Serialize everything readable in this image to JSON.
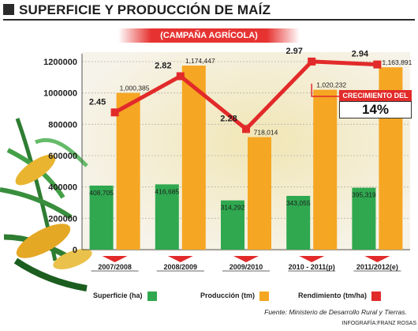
{
  "header": {
    "title": "SUPERFICIE Y PRODUCCIÓN DE MAÍZ",
    "banner": "(CAMPAÑA AGRÍCOLA)"
  },
  "chart_data": {
    "type": "bar",
    "categories": [
      "2007/2008",
      "2008/2009",
      "2009/2010",
      "2010 - 2011(p)",
      "2011/2012(e)"
    ],
    "ylim": [
      0,
      1200000
    ],
    "yticks": [
      "0",
      "200000",
      "400000",
      "600000",
      "800000",
      "1000000",
      "1200000"
    ],
    "grid": true,
    "legend_position": "bottom",
    "series": [
      {
        "name": "Superficie (ha)",
        "kind": "bar",
        "color": "#2fa84f",
        "values": [
          408705,
          416685,
          314292,
          343055,
          395319
        ],
        "labels": [
          "408,705",
          "416,685",
          "314,292",
          "343,055",
          "395,319"
        ]
      },
      {
        "name": "Producción (tm)",
        "kind": "bar",
        "color": "#f5a623",
        "values": [
          1000385,
          1174447,
          718014,
          1020232,
          1163891
        ],
        "labels": [
          "1,000,385",
          "1,174,447",
          "718,014",
          "1,020,232",
          "1,163,891"
        ]
      },
      {
        "name": "Rendimiento (tm/ha)",
        "kind": "line",
        "color": "#e22a2a",
        "values": [
          2.45,
          2.82,
          2.28,
          2.97,
          2.94
        ],
        "labels": [
          "2.45",
          "2.82",
          "2.28",
          "2.97",
          "2.94"
        ]
      }
    ],
    "annotation": {
      "title": "CRECIMIENTO DEL",
      "value": "14%"
    }
  },
  "footer": {
    "source": "Fuente: Ministerio de Desarrollo Rural y Tierras.",
    "credit": "INFOGRAFÍA:FRANZ ROSAS"
  },
  "colors": {
    "accent": "#e22a2a",
    "superficie": "#2fa84f",
    "produccion": "#f5a623",
    "plot_bg": "#f3f0e6"
  }
}
